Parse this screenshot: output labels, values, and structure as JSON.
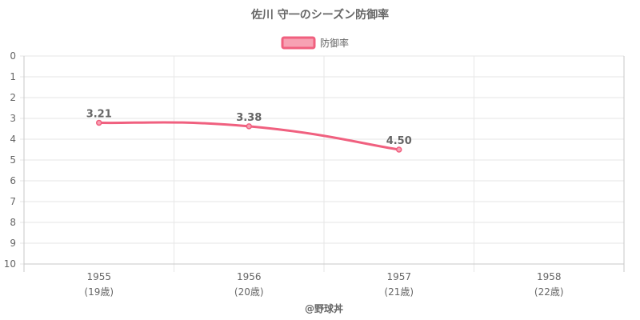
{
  "chart_data": {
    "type": "line",
    "title": "佐川 守一のシーズン防御率",
    "legend": {
      "label": "防御率",
      "position": "top"
    },
    "categories": [
      "1955",
      "1956",
      "1957",
      "1958"
    ],
    "category_sublabels": [
      "(19歳)",
      "(20歳)",
      "(21歳)",
      "(22歳)"
    ],
    "series": [
      {
        "name": "防御率",
        "values": [
          3.21,
          3.38,
          4.5,
          null
        ],
        "labels": [
          "3.21",
          "3.38",
          "4.50",
          ""
        ]
      }
    ],
    "y_ticks": [
      "0",
      "1",
      "2",
      "3",
      "4",
      "5",
      "6",
      "7",
      "8",
      "9",
      "10"
    ],
    "ylim": [
      0,
      10
    ],
    "y_reversed": true,
    "grid": true,
    "colors": {
      "line": "#f0607f",
      "fill": "#f7a1b3"
    }
  },
  "footer": "@野球丼"
}
